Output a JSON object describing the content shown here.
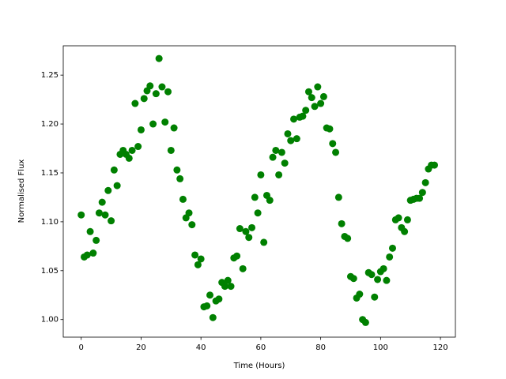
{
  "chart_data": {
    "type": "scatter",
    "xlabel": "Time (Hours)",
    "ylabel": "Normalised Flux",
    "color": "#008000",
    "xlim": [
      -6,
      125
    ],
    "ylim": [
      0.982,
      1.28
    ],
    "xticks": [
      0,
      20,
      40,
      60,
      80,
      100,
      120
    ],
    "yticks": [
      {
        "value": 1.0,
        "label": "1.00"
      },
      1.05,
      {
        "value": 1.1,
        "label": "1.10"
      },
      1.15,
      {
        "value": 1.2,
        "label": "1.20"
      },
      1.25
    ],
    "x": [
      0,
      1,
      2,
      3,
      4,
      5,
      6,
      7,
      8,
      9,
      10,
      11,
      12,
      13,
      14,
      15,
      16,
      17,
      18,
      19,
      20,
      21,
      22,
      23,
      24,
      25,
      26,
      27,
      28,
      29,
      30,
      31,
      32,
      33,
      34,
      35,
      36,
      37,
      38,
      39,
      40,
      41,
      42,
      43,
      44,
      45,
      46,
      47,
      48,
      49,
      50,
      51,
      52,
      53,
      54,
      55,
      56,
      57,
      58,
      59,
      60,
      61,
      62,
      63,
      64,
      65,
      66,
      67,
      68,
      69,
      70,
      71,
      72,
      73,
      74,
      75,
      76,
      77,
      78,
      79,
      80,
      81,
      82,
      83,
      84,
      85,
      86,
      87,
      88,
      89,
      90,
      91,
      92,
      93,
      94,
      95,
      96,
      97,
      98,
      99,
      100,
      101,
      102,
      103,
      104,
      105,
      106,
      107,
      108,
      109,
      110,
      111,
      112,
      113,
      114,
      115,
      116,
      117,
      118
    ],
    "values": [
      1.107,
      1.064,
      1.066,
      1.09,
      1.068,
      1.081,
      1.109,
      1.12,
      1.107,
      1.132,
      1.101,
      1.153,
      1.137,
      1.169,
      1.173,
      1.169,
      1.165,
      1.173,
      1.221,
      1.177,
      1.194,
      1.226,
      1.234,
      1.239,
      1.2,
      1.231,
      1.267,
      1.238,
      1.202,
      1.233,
      1.173,
      1.196,
      1.153,
      1.144,
      1.123,
      1.104,
      1.109,
      1.097,
      1.066,
      1.056,
      1.062,
      1.013,
      1.014,
      1.025,
      1.002,
      1.019,
      1.021,
      1.038,
      1.034,
      1.04,
      1.034,
      1.063,
      1.065,
      1.093,
      1.052,
      1.09,
      1.084,
      1.094,
      1.125,
      1.109,
      1.148,
      1.079,
      1.127,
      1.122,
      1.166,
      1.173,
      1.148,
      1.171,
      1.16,
      1.19,
      1.183,
      1.205,
      1.185,
      1.207,
      1.208,
      1.214,
      1.233,
      1.227,
      1.218,
      1.238,
      1.221,
      1.228,
      1.196,
      1.195,
      1.18,
      1.171,
      1.125,
      1.098,
      1.085,
      1.083,
      1.044,
      1.042,
      1.022,
      1.026,
      1.0,
      0.997,
      1.048,
      1.046,
      1.023,
      1.041,
      1.049,
      1.052,
      1.04,
      1.064,
      1.073,
      1.102,
      1.104,
      1.094,
      1.09,
      1.102,
      1.122,
      1.123,
      1.124,
      1.124,
      1.13,
      1.14,
      1.154,
      1.158,
      1.158
    ]
  }
}
